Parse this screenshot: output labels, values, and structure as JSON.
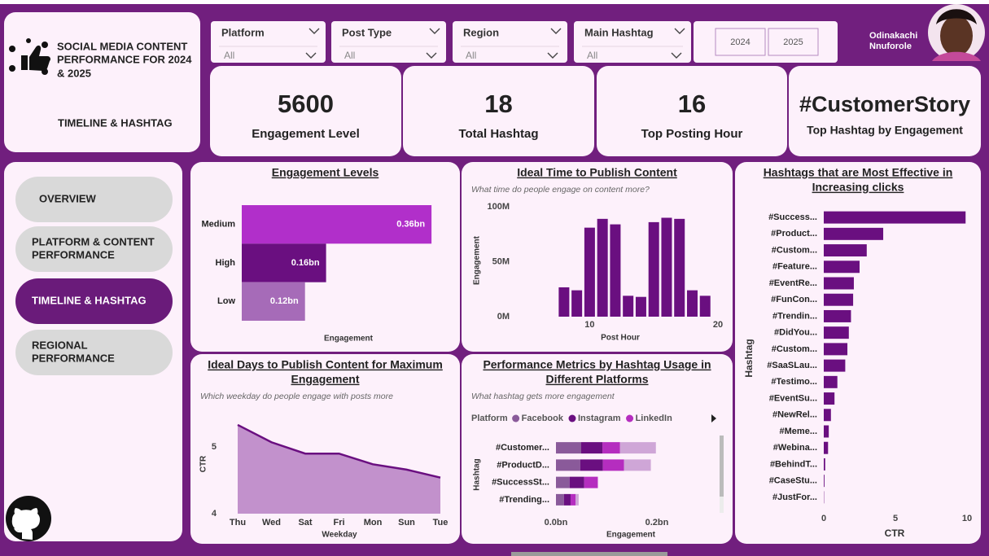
{
  "header": {
    "title_lines": [
      "SOCIAL MEDIA CONTENT",
      "PERFORMANCE FOR 2024",
      "& 2025"
    ],
    "page": "TIMELINE & HASHTAG"
  },
  "filters": [
    {
      "label": "Platform",
      "value": "All"
    },
    {
      "label": "Post Type",
      "value": "All"
    },
    {
      "label": "Region",
      "value": "All"
    },
    {
      "label": "Main Hashtag",
      "value": "All"
    }
  ],
  "year_buttons": [
    "2024",
    "2025"
  ],
  "user": {
    "name_lines": [
      "Odinakachi",
      "Nnuforole"
    ]
  },
  "kpis": [
    {
      "value": 5600,
      "label": "Engagement Level"
    },
    {
      "value": 18,
      "label": "Total Hashtag"
    },
    {
      "value": 16,
      "label": "Top Posting Hour"
    },
    {
      "value": "#CustomerStory",
      "label": "Top Hashtag by Engagement"
    }
  ],
  "nav": [
    {
      "label_lines": [
        "OVERVIEW"
      ],
      "active": false
    },
    {
      "label_lines": [
        "PLATFORM & CONTENT",
        "PERFORMANCE"
      ],
      "active": false
    },
    {
      "label_lines": [
        "TIMELINE & HASHTAG"
      ],
      "active": true
    },
    {
      "label_lines": [
        "REGIONAL",
        "PERFORMANCE"
      ],
      "active": false
    }
  ],
  "chart_data": [
    {
      "type": "hbar",
      "title": [
        "Engagement Levels"
      ],
      "categories": [
        "Medium",
        "High",
        "Low"
      ],
      "values": [
        0.36,
        0.16,
        0.12
      ],
      "value_labels": [
        "0.36bn",
        "0.16bn",
        "0.12bn"
      ],
      "colors": [
        "#b12fca",
        "#6a0f80",
        "#a66bb8"
      ],
      "xlim": [
        0,
        0.4
      ],
      "xlabel": "Engagement"
    },
    {
      "type": "column",
      "title": [
        "Ideal Time to Publish Content"
      ],
      "subtitle": "What time do people engage on content more?",
      "x": [
        8,
        9,
        10,
        11,
        12,
        13,
        14,
        15,
        16,
        17,
        18,
        19
      ],
      "values": [
        26700000,
        24000000,
        81000000,
        89000000,
        84000000,
        19000000,
        18000000,
        86000000,
        90000000,
        89000000,
        24000000,
        19000000
      ],
      "color": "#6a0f80",
      "xlim": [
        7.5,
        20
      ],
      "xticks": [
        10,
        20
      ],
      "ylim": [
        0,
        100000000
      ],
      "yticks": [
        {
          "value": 0,
          "label": "0M"
        },
        {
          "value": 50000000,
          "label": "50M"
        },
        {
          "value": 100000000,
          "label": "100M"
        }
      ],
      "xlabel": "Post Hour",
      "ylabel": "Engagement"
    },
    {
      "type": "hbar",
      "title": [
        "Hashtags that are Most Effective in",
        "Increasing clicks"
      ],
      "categories": [
        "#Success...",
        "#Product...",
        "#Custom...",
        "#Feature...",
        "#EventRe...",
        "#FunCon...",
        "#Trendin...",
        "#DidYou...",
        "#Custom...",
        "#SaaSLau...",
        "#Testimo...",
        "#EventSu...",
        "#NewRel...",
        "#Meme...",
        "#Webina...",
        "#BehindT...",
        "#CaseStu...",
        "#JustFor..."
      ],
      "values": [
        9.9,
        4.15,
        3.0,
        2.5,
        2.1,
        2.05,
        1.9,
        1.75,
        1.65,
        1.5,
        0.95,
        0.75,
        0.5,
        0.35,
        0.3,
        0.1,
        0.05,
        0.02
      ],
      "color": "#6a0f80",
      "xlim": [
        0,
        10
      ],
      "xticks": [
        0,
        5,
        10
      ],
      "xlabel": "CTR",
      "ylabel": "Hashtag"
    },
    {
      "type": "area",
      "title": [
        "Ideal Days to Publish Content for Maximum",
        "Engagement"
      ],
      "subtitle": "Which weekday do people engage with posts more",
      "categories": [
        "Thu",
        "Wed",
        "Sat",
        "Fri",
        "Mon",
        "Sun",
        "Tue"
      ],
      "values": [
        5.33,
        5.07,
        4.9,
        4.9,
        4.74,
        4.66,
        4.54
      ],
      "color": "#6a0f80",
      "fill": "#c291cc",
      "ylim": [
        4,
        5.6
      ],
      "yticks": [
        4,
        5
      ],
      "xlabel": "Weekday",
      "ylabel": "CTR"
    },
    {
      "type": "stacked_hbar",
      "title": [
        "Performance Metrics by Hashtag Usage in",
        "Different Platforms"
      ],
      "subtitle": "What hashtag gets more engagement",
      "legend_title": "Platform",
      "categories": [
        "#Customer...",
        "#ProductD...",
        "#SuccessSt...",
        "#Trending..."
      ],
      "series": [
        {
          "name": "Facebook",
          "color": "#8a5a9a",
          "values": [
            0.05,
            0.048,
            0.027,
            0.016
          ]
        },
        {
          "name": "Instagram",
          "color": "#6a0f80",
          "values": [
            0.042,
            0.045,
            0.029,
            0.013
          ]
        },
        {
          "name": "LinkedIn",
          "color": "#b52dbf",
          "values": [
            0.035,
            0.042,
            0.027,
            0.01
          ]
        },
        {
          "color": "#cfa6d7",
          "values": [
            0.071,
            0.053,
            0,
            0.006
          ]
        }
      ],
      "xlim": [
        0,
        0.2
      ],
      "xticks": [
        {
          "value": 0,
          "label": "0.0bn"
        },
        {
          "value": 0.2,
          "label": "0.2bn"
        }
      ],
      "xlabel": "Engagement",
      "ylabel": "Hashtag"
    }
  ]
}
